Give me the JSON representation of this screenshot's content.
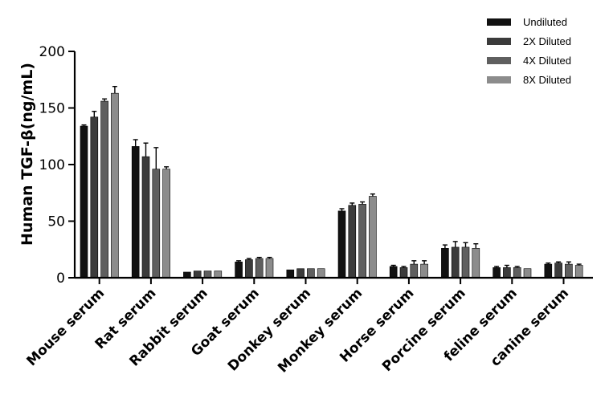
{
  "chart_data": {
    "type": "bar",
    "title": "",
    "xlabel": "",
    "ylabel": "Human TGF-β(ng/mL)",
    "ylim": [
      0,
      200
    ],
    "yticks": [
      0,
      50,
      100,
      150,
      200
    ],
    "legend_position": "top-right",
    "grid": false,
    "categories": [
      "Mouse serum",
      "Rat serum",
      "Rabbit serum",
      "Goat serum",
      "Donkey serum",
      "Monkey serum",
      "Horse serum",
      "Porcine serum",
      "feline serum",
      "canine serum"
    ],
    "series": [
      {
        "name": "Undiluted",
        "color": "#111111",
        "values": [
          134,
          116,
          5,
          14,
          7,
          59,
          10,
          26,
          9,
          12
        ],
        "errors": [
          1,
          6,
          0,
          1,
          0,
          2,
          1,
          3,
          1,
          1
        ]
      },
      {
        "name": "2X Diluted",
        "color": "#3b3b3b",
        "values": [
          142,
          107,
          6,
          16,
          8,
          64,
          9,
          27,
          9,
          13
        ],
        "errors": [
          5,
          12,
          0,
          1,
          0,
          2,
          1,
          5,
          2,
          1
        ]
      },
      {
        "name": "4X Diluted",
        "color": "#5f5f5f",
        "values": [
          156,
          96,
          6,
          17,
          8,
          65,
          12,
          27,
          9,
          12
        ],
        "errors": [
          2,
          19,
          0,
          1,
          0,
          2,
          3,
          4,
          1,
          2
        ]
      },
      {
        "name": "8X Diluted",
        "color": "#8c8c8c",
        "values": [
          163,
          96,
          6,
          17,
          8,
          72,
          12,
          26,
          8,
          11
        ],
        "errors": [
          6,
          2,
          0,
          1,
          0,
          2,
          3,
          4,
          0,
          1
        ]
      }
    ]
  }
}
